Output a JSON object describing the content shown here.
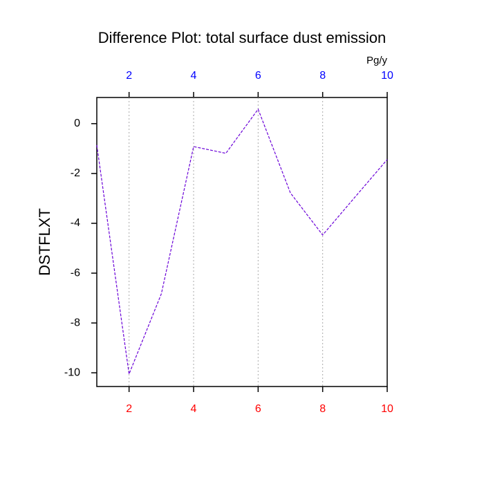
{
  "chart_data": {
    "type": "line",
    "title": "Difference Plot: total surface dust emission",
    "top_axis_label": "Pg/y",
    "y_label": "DSTFLXT",
    "x": [
      1,
      2,
      3,
      4,
      5,
      6,
      7,
      8,
      9,
      10
    ],
    "series": [
      {
        "name": "DSTFLXT",
        "color": "#6a00d8",
        "values": [
          -0.86,
          -10.05,
          -6.83,
          -0.92,
          -1.19,
          0.58,
          -2.78,
          -4.47,
          -2.95,
          -1.44
        ]
      }
    ],
    "xlim": [
      1,
      10
    ],
    "ylim": [
      -10.55,
      1.05
    ],
    "xticks": [
      2,
      4,
      6,
      8,
      10
    ],
    "yticks": [
      -10,
      -8,
      -6,
      -4,
      -2,
      0
    ],
    "bottom_tick_color": "#ff0000",
    "top_tick_color": "#0000ff",
    "grid": "x",
    "line_style": "dashed"
  }
}
